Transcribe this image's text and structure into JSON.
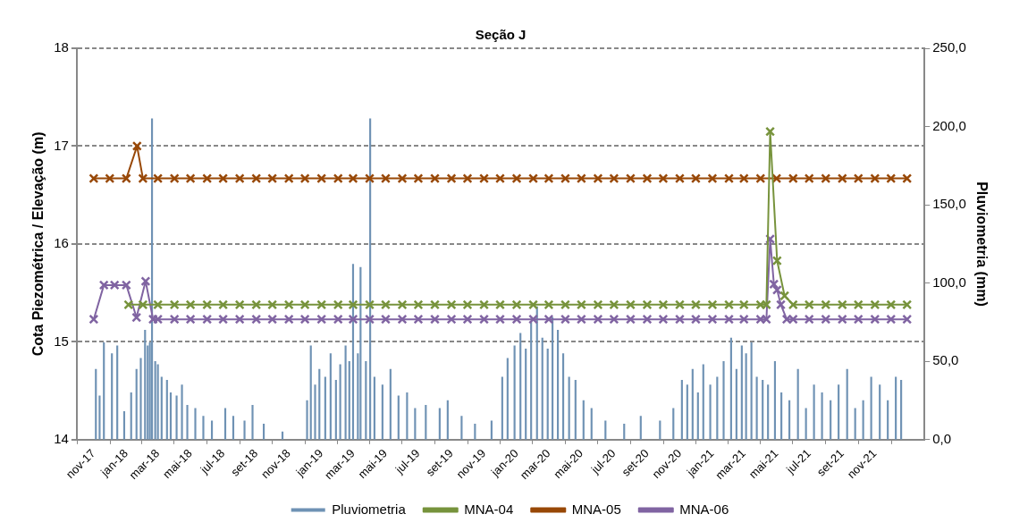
{
  "chart_data": {
    "type": "line",
    "title": "Seção J",
    "ylabel": "Cota Piezométrica / Elevação (m)",
    "y2label": "Pluviometria (mm)",
    "xlim": [
      "2017-11-01",
      "2022-01-01"
    ],
    "xticks": [
      {
        "value": "2017-11",
        "label": "nov-17"
      },
      {
        "value": "2018-01",
        "label": "jan-18"
      },
      {
        "value": "2018-03",
        "label": "mar-18"
      },
      {
        "value": "2018-05",
        "label": "mai-18"
      },
      {
        "value": "2018-07",
        "label": "jul-18"
      },
      {
        "value": "2018-09",
        "label": "set-18"
      },
      {
        "value": "2018-11",
        "label": "nov-18"
      },
      {
        "value": "2019-01",
        "label": "jan-19"
      },
      {
        "value": "2019-03",
        "label": "mar-19"
      },
      {
        "value": "2019-05",
        "label": "mai-19"
      },
      {
        "value": "2019-07",
        "label": "jul-19"
      },
      {
        "value": "2019-09",
        "label": "set-19"
      },
      {
        "value": "2019-11",
        "label": "nov-19"
      },
      {
        "value": "2020-01",
        "label": "jan-20"
      },
      {
        "value": "2020-03",
        "label": "mar-20"
      },
      {
        "value": "2020-05",
        "label": "mai-20"
      },
      {
        "value": "2020-07",
        "label": "jul-20"
      },
      {
        "value": "2020-09",
        "label": "set-20"
      },
      {
        "value": "2020-11",
        "label": "nov-20"
      },
      {
        "value": "2021-01",
        "label": "jan-21"
      },
      {
        "value": "2021-03",
        "label": "mar-21"
      },
      {
        "value": "2021-05",
        "label": "mai-21"
      },
      {
        "value": "2021-07",
        "label": "jul-21"
      },
      {
        "value": "2021-09",
        "label": "set-21"
      },
      {
        "value": "2021-11",
        "label": "nov-21"
      }
    ],
    "ylim": [
      14,
      18
    ],
    "yticks": [
      14,
      15,
      16,
      17,
      18
    ],
    "y2lim": [
      0,
      250
    ],
    "y2ticks": [
      {
        "value": 0,
        "label": "0,0"
      },
      {
        "value": 50,
        "label": "50,0"
      },
      {
        "value": 100,
        "label": "100,0"
      },
      {
        "value": 150,
        "label": "150,0"
      },
      {
        "value": 200,
        "label": "200,0"
      },
      {
        "value": 250,
        "label": "250,0"
      }
    ],
    "grid": "y",
    "legend": "bottom",
    "marker": "cross",
    "line_style": "solid",
    "series": [
      {
        "name": "Pluviometria",
        "type": "bar",
        "axis": "y2",
        "color": "#6f92b4",
        "x": [
          "2017-11-05",
          "2017-11-12",
          "2017-11-20",
          "2017-12-05",
          "2017-12-15",
          "2017-12-28",
          "2018-01-10",
          "2018-01-20",
          "2018-01-28",
          "2018-02-05",
          "2018-02-10",
          "2018-02-14",
          "2018-02-18",
          "2018-02-24",
          "2018-03-01",
          "2018-03-08",
          "2018-03-18",
          "2018-03-25",
          "2018-04-05",
          "2018-04-15",
          "2018-04-25",
          "2018-05-10",
          "2018-05-25",
          "2018-06-10",
          "2018-07-05",
          "2018-07-20",
          "2018-08-10",
          "2018-08-25",
          "2018-09-15",
          "2018-10-20",
          "2018-12-05",
          "2018-12-12",
          "2018-12-20",
          "2018-12-28",
          "2019-01-08",
          "2019-01-18",
          "2019-01-28",
          "2019-02-05",
          "2019-02-15",
          "2019-02-22",
          "2019-03-01",
          "2019-03-10",
          "2019-03-15",
          "2019-03-25",
          "2019-04-02",
          "2019-04-10",
          "2019-04-25",
          "2019-05-10",
          "2019-05-25",
          "2019-06-10",
          "2019-06-25",
          "2019-07-15",
          "2019-08-10",
          "2019-08-25",
          "2019-09-20",
          "2019-10-15",
          "2019-11-15",
          "2019-12-05",
          "2019-12-15",
          "2019-12-28",
          "2020-01-08",
          "2020-01-18",
          "2020-01-28",
          "2020-02-08",
          "2020-02-18",
          "2020-02-28",
          "2020-03-08",
          "2020-03-18",
          "2020-03-28",
          "2020-04-08",
          "2020-04-20",
          "2020-05-05",
          "2020-05-20",
          "2020-06-15",
          "2020-07-20",
          "2020-08-20",
          "2020-09-25",
          "2020-10-20",
          "2020-11-05",
          "2020-11-15",
          "2020-11-25",
          "2020-12-05",
          "2020-12-15",
          "2020-12-28",
          "2021-01-10",
          "2021-01-22",
          "2021-02-05",
          "2021-02-15",
          "2021-02-25",
          "2021-03-05",
          "2021-03-15",
          "2021-03-25",
          "2021-04-05",
          "2021-04-15",
          "2021-04-28",
          "2021-05-10",
          "2021-05-25",
          "2021-06-10",
          "2021-06-25",
          "2021-07-10",
          "2021-07-25",
          "2021-08-10",
          "2021-08-25",
          "2021-09-10",
          "2021-09-25",
          "2021-10-10",
          "2021-10-25",
          "2021-11-10",
          "2021-11-25",
          "2021-12-10",
          "2021-12-20"
        ],
        "values": [
          45,
          28,
          62,
          55,
          60,
          18,
          30,
          45,
          52,
          70,
          60,
          62,
          205,
          50,
          48,
          40,
          38,
          30,
          28,
          35,
          22,
          20,
          15,
          12,
          20,
          15,
          12,
          22,
          10,
          5,
          25,
          60,
          35,
          45,
          40,
          55,
          38,
          48,
          60,
          50,
          112,
          55,
          110,
          50,
          205,
          40,
          35,
          45,
          28,
          30,
          20,
          22,
          20,
          25,
          15,
          10,
          12,
          40,
          52,
          60,
          68,
          58,
          75,
          85,
          65,
          58,
          78,
          70,
          55,
          40,
          38,
          25,
          20,
          12,
          10,
          15,
          12,
          20,
          38,
          35,
          45,
          30,
          48,
          35,
          40,
          50,
          65,
          45,
          60,
          55,
          62,
          40,
          38,
          35,
          50,
          30,
          25,
          45,
          20,
          35,
          30,
          25,
          35,
          45,
          20,
          25,
          40,
          35,
          25,
          40,
          38
        ]
      },
      {
        "name": "MNA-04",
        "color": "#77933c",
        "x": [
          "2018-01-05",
          "2018-02-01",
          "2018-03",
          "2018-04",
          "2018-05",
          "2018-06",
          "2018-07",
          "2018-08",
          "2018-09",
          "2018-10",
          "2018-11",
          "2018-12",
          "2019-01",
          "2019-02",
          "2019-03",
          "2019-04",
          "2019-05",
          "2019-06",
          "2019-07",
          "2019-08",
          "2019-09",
          "2019-10",
          "2019-11",
          "2019-12",
          "2020-01",
          "2020-02",
          "2020-03",
          "2020-04",
          "2020-05",
          "2020-06",
          "2020-07",
          "2020-08",
          "2020-09",
          "2020-10",
          "2020-11",
          "2020-12",
          "2021-01",
          "2021-02",
          "2021-03",
          "2021-04",
          "2021-04-12",
          "2021-04-19",
          "2021-05-02",
          "2021-05-16",
          "2021-06",
          "2021-07",
          "2021-08",
          "2021-09",
          "2021-10",
          "2021-11",
          "2021-12",
          "2021-12-31"
        ],
        "values": [
          15.38,
          15.38,
          15.38,
          15.38,
          15.38,
          15.38,
          15.38,
          15.38,
          15.38,
          15.38,
          15.38,
          15.38,
          15.38,
          15.38,
          15.38,
          15.38,
          15.38,
          15.38,
          15.38,
          15.38,
          15.38,
          15.38,
          15.38,
          15.38,
          15.38,
          15.38,
          15.38,
          15.38,
          15.38,
          15.38,
          15.38,
          15.38,
          15.38,
          15.38,
          15.38,
          15.38,
          15.38,
          15.38,
          15.38,
          15.38,
          15.38,
          17.15,
          15.83,
          15.47,
          15.38,
          15.38,
          15.38,
          15.38,
          15.38,
          15.38,
          15.38,
          15.38
        ]
      },
      {
        "name": "MNA-05",
        "color": "#984807",
        "x": [
          "2017-11-01",
          "2017-12-01",
          "2018-01-01",
          "2018-01-21",
          "2018-02-01",
          "2018-03",
          "2018-04",
          "2018-05",
          "2018-06",
          "2018-07",
          "2018-08",
          "2018-09",
          "2018-10",
          "2018-11",
          "2018-12",
          "2019-01",
          "2019-02",
          "2019-03",
          "2019-04",
          "2019-05",
          "2019-06",
          "2019-07",
          "2019-08",
          "2019-09",
          "2019-10",
          "2019-11",
          "2019-12",
          "2020-01",
          "2020-02",
          "2020-03",
          "2020-04",
          "2020-05",
          "2020-06",
          "2020-07",
          "2020-08",
          "2020-09",
          "2020-10",
          "2020-11",
          "2020-12",
          "2021-01",
          "2021-02",
          "2021-03",
          "2021-04",
          "2021-05",
          "2021-06",
          "2021-07",
          "2021-08",
          "2021-09",
          "2021-10",
          "2021-11",
          "2021-12",
          "2021-12-31"
        ],
        "values": [
          16.67,
          16.67,
          16.67,
          17.0,
          16.67,
          16.67,
          16.67,
          16.67,
          16.67,
          16.67,
          16.67,
          16.67,
          16.67,
          16.67,
          16.67,
          16.67,
          16.67,
          16.67,
          16.67,
          16.67,
          16.67,
          16.67,
          16.67,
          16.67,
          16.67,
          16.67,
          16.67,
          16.67,
          16.67,
          16.67,
          16.67,
          16.67,
          16.67,
          16.67,
          16.67,
          16.67,
          16.67,
          16.67,
          16.67,
          16.67,
          16.67,
          16.67,
          16.67,
          16.67,
          16.67,
          16.67,
          16.67,
          16.67,
          16.67,
          16.67,
          16.67,
          16.67
        ]
      },
      {
        "name": "MNA-06",
        "color": "#8064a2",
        "x": [
          "2017-11-01",
          "2017-11-20",
          "2017-12-10",
          "2018-01-01",
          "2018-01-20",
          "2018-02-06",
          "2018-02-20",
          "2018-03",
          "2018-04",
          "2018-05",
          "2018-06",
          "2018-07",
          "2018-08",
          "2018-09",
          "2018-10",
          "2018-11",
          "2018-12",
          "2019-01",
          "2019-02",
          "2019-03",
          "2019-04",
          "2019-05",
          "2019-06",
          "2019-07",
          "2019-08",
          "2019-09",
          "2019-10",
          "2019-11",
          "2019-12",
          "2020-01",
          "2020-02",
          "2020-03",
          "2020-04",
          "2020-05",
          "2020-06",
          "2020-07",
          "2020-08",
          "2020-09",
          "2020-10",
          "2020-11",
          "2020-12",
          "2021-01",
          "2021-02",
          "2021-03",
          "2021-04",
          "2021-04-12",
          "2021-04-19",
          "2021-04-26",
          "2021-05-02",
          "2021-05-09",
          "2021-05-20",
          "2021-06",
          "2021-07",
          "2021-08",
          "2021-09",
          "2021-10",
          "2021-11",
          "2021-12",
          "2021-12-31"
        ],
        "values": [
          15.23,
          15.58,
          15.58,
          15.58,
          15.25,
          15.62,
          15.23,
          15.23,
          15.23,
          15.23,
          15.23,
          15.23,
          15.23,
          15.23,
          15.23,
          15.23,
          15.23,
          15.23,
          15.23,
          15.23,
          15.23,
          15.23,
          15.23,
          15.23,
          15.23,
          15.23,
          15.23,
          15.23,
          15.23,
          15.23,
          15.23,
          15.23,
          15.23,
          15.23,
          15.23,
          15.23,
          15.23,
          15.23,
          15.23,
          15.23,
          15.23,
          15.23,
          15.23,
          15.23,
          15.23,
          15.23,
          16.05,
          15.59,
          15.53,
          15.38,
          15.23,
          15.23,
          15.23,
          15.23,
          15.23,
          15.23,
          15.23,
          15.23,
          15.23
        ]
      }
    ]
  }
}
